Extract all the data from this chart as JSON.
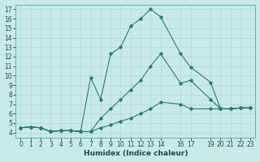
{
  "title": "",
  "xlabel": "Humidex (Indice chaleur)",
  "background_color": "#c8eae6",
  "grid_color": "#b0d8d4",
  "line_color": "#2a7a6a",
  "xlim": [
    -0.5,
    23.5
  ],
  "ylim": [
    3.5,
    17.5
  ],
  "xticks": [
    0,
    1,
    2,
    3,
    4,
    5,
    6,
    7,
    8,
    9,
    10,
    11,
    12,
    13,
    14,
    16,
    17,
    19,
    20,
    21,
    22,
    23
  ],
  "yticks": [
    4,
    5,
    6,
    7,
    8,
    9,
    10,
    11,
    12,
    13,
    14,
    15,
    16,
    17
  ],
  "line1_x": [
    0,
    1,
    2,
    3,
    4,
    5,
    6,
    7,
    8,
    9,
    10,
    11,
    12,
    13,
    14,
    16,
    17,
    19,
    20,
    21,
    22,
    23
  ],
  "line1_y": [
    4.5,
    4.6,
    4.5,
    4.1,
    4.2,
    4.2,
    4.1,
    9.8,
    7.5,
    12.3,
    13.0,
    15.2,
    16.0,
    17.0,
    16.2,
    12.3,
    10.9,
    9.3,
    6.5,
    6.5,
    6.6,
    6.6
  ],
  "line2_x": [
    0,
    1,
    2,
    3,
    4,
    5,
    6,
    7,
    8,
    9,
    10,
    11,
    12,
    13,
    14,
    16,
    17,
    19,
    20,
    21,
    22,
    23
  ],
  "line2_y": [
    4.5,
    4.6,
    4.5,
    4.1,
    4.2,
    4.2,
    4.1,
    4.1,
    5.5,
    6.5,
    7.5,
    8.5,
    9.5,
    11.0,
    12.3,
    9.2,
    9.5,
    7.5,
    6.5,
    6.5,
    6.6,
    6.6
  ],
  "line3_x": [
    0,
    1,
    2,
    3,
    4,
    5,
    6,
    7,
    8,
    9,
    10,
    11,
    12,
    13,
    14,
    16,
    17,
    19,
    20,
    21,
    22,
    23
  ],
  "line3_y": [
    4.5,
    4.6,
    4.5,
    4.1,
    4.2,
    4.2,
    4.1,
    4.1,
    4.5,
    4.8,
    5.2,
    5.5,
    6.0,
    6.5,
    7.2,
    7.0,
    6.5,
    6.5,
    6.5,
    6.5,
    6.6,
    6.6
  ],
  "fontsize_xlabel": 6.5,
  "fontsize_ticks": 5.5
}
